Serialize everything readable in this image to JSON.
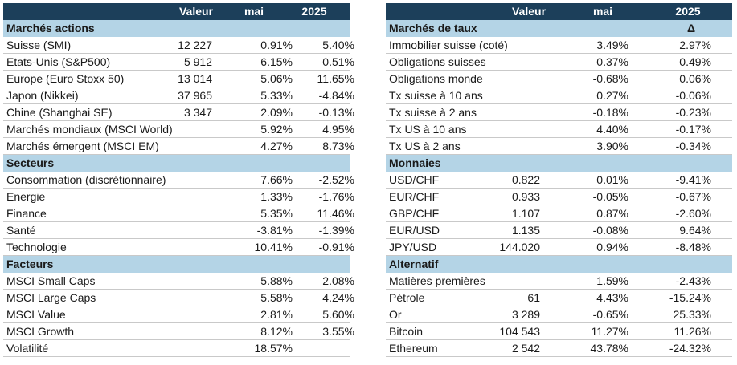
{
  "left": {
    "headers": {
      "valeur": "Valeur",
      "mai": "mai",
      "year": "2025"
    },
    "sections": [
      {
        "title": "Marchés actions",
        "rows": [
          {
            "name": "Suisse (SMI)",
            "valeur": "12 227",
            "mai": "0.91%",
            "ytd": "5.40%"
          },
          {
            "name": "Etats-Unis (S&P500)",
            "valeur": "5 912",
            "mai": "6.15%",
            "ytd": "0.51%"
          },
          {
            "name": "Europe (Euro Stoxx 50)",
            "valeur": "13 014",
            "mai": "5.06%",
            "ytd": "11.65%"
          },
          {
            "name": "Japon (Nikkei)",
            "valeur": "37 965",
            "mai": "5.33%",
            "ytd": "-4.84%"
          },
          {
            "name": "Chine (Shanghai SE)",
            "valeur": "3 347",
            "mai": "2.09%",
            "ytd": "-0.13%"
          },
          {
            "name": "Marchés mondiaux (MSCI World)",
            "valeur": "",
            "mai": "5.92%",
            "ytd": "4.95%"
          },
          {
            "name": "Marchés émergent (MSCI EM)",
            "valeur": "",
            "mai": "4.27%",
            "ytd": "8.73%"
          }
        ]
      },
      {
        "title": "Secteurs",
        "rows": [
          {
            "name": "Consommation (discrétionnaire)",
            "valeur": "",
            "mai": "7.66%",
            "ytd": "-2.52%"
          },
          {
            "name": "Energie",
            "valeur": "",
            "mai": "1.33%",
            "ytd": "-1.76%"
          },
          {
            "name": "Finance",
            "valeur": "",
            "mai": "5.35%",
            "ytd": "11.46%"
          },
          {
            "name": "Santé",
            "valeur": "",
            "mai": "-3.81%",
            "ytd": "-1.39%"
          },
          {
            "name": "Technologie",
            "valeur": "",
            "mai": "10.41%",
            "ytd": "-0.91%"
          }
        ]
      },
      {
        "title": "Facteurs",
        "rows": [
          {
            "name": "MSCI Small Caps",
            "valeur": "",
            "mai": "5.88%",
            "ytd": "2.08%"
          },
          {
            "name": "MSCI Large Caps",
            "valeur": "",
            "mai": "5.58%",
            "ytd": "4.24%"
          },
          {
            "name": "MSCI Value",
            "valeur": "",
            "mai": "2.81%",
            "ytd": "5.60%"
          },
          {
            "name": "MSCI Growth",
            "valeur": "",
            "mai": "8.12%",
            "ytd": "3.55%"
          },
          {
            "name": "Volatilité",
            "valeur": "",
            "mai": "18.57%",
            "ytd": ""
          }
        ]
      }
    ]
  },
  "right": {
    "headers": {
      "valeur": "Valeur",
      "mai": "mai",
      "year": "2025"
    },
    "sections": [
      {
        "title": "Marchés de taux",
        "marker": "Δ",
        "rows": [
          {
            "name": "Immobilier suisse (coté)",
            "valeur": "",
            "mai": "3.49%",
            "ytd": "2.97%"
          },
          {
            "name": "Obligations suisses",
            "valeur": "",
            "mai": "0.37%",
            "ytd": "0.49%"
          },
          {
            "name": "Obligations monde",
            "valeur": "",
            "mai": "-0.68%",
            "ytd": "0.06%"
          },
          {
            "name": "Tx suisse à 10 ans",
            "valeur": "",
            "mai": "0.27%",
            "ytd": "-0.06%"
          },
          {
            "name": "Tx suisse à 2 ans",
            "valeur": "",
            "mai": "-0.18%",
            "ytd": "-0.23%"
          },
          {
            "name": "Tx US à 10 ans",
            "valeur": "",
            "mai": "4.40%",
            "ytd": "-0.17%"
          },
          {
            "name": "Tx US à 2 ans",
            "valeur": "",
            "mai": "3.90%",
            "ytd": "-0.34%"
          }
        ]
      },
      {
        "title": "Monnaies",
        "marker": "",
        "rows": [
          {
            "name": "USD/CHF",
            "valeur": "0.822",
            "mai": "0.01%",
            "ytd": "-9.41%"
          },
          {
            "name": "EUR/CHF",
            "valeur": "0.933",
            "mai": "-0.05%",
            "ytd": "-0.67%"
          },
          {
            "name": "GBP/CHF",
            "valeur": "1.107",
            "mai": "0.87%",
            "ytd": "-2.60%"
          },
          {
            "name": "EUR/USD",
            "valeur": "1.135",
            "mai": "-0.08%",
            "ytd": "9.64%"
          },
          {
            "name": "JPY/USD",
            "valeur": "144.020",
            "mai": "0.94%",
            "ytd": "-8.48%"
          }
        ]
      },
      {
        "title": "Alternatif",
        "marker": "",
        "rows": [
          {
            "name": "Matières premières",
            "valeur": "",
            "mai": "1.59%",
            "ytd": "-2.43%"
          },
          {
            "name": "Pétrole",
            "valeur": "61",
            "mai": "4.43%",
            "ytd": "-15.24%"
          },
          {
            "name": "Or",
            "valeur": "3 289",
            "mai": "-0.65%",
            "ytd": "25.33%"
          },
          {
            "name": "Bitcoin",
            "valeur": "104 543",
            "mai": "11.27%",
            "ytd": "11.26%"
          },
          {
            "name": "Ethereum",
            "valeur": "2 542",
            "mai": "43.78%",
            "ytd": "-24.32%"
          }
        ]
      }
    ]
  },
  "colors": {
    "header_bg": "#1c3f5a",
    "section_bg": "#b4d4e6",
    "grid": "#c9c9c9"
  }
}
